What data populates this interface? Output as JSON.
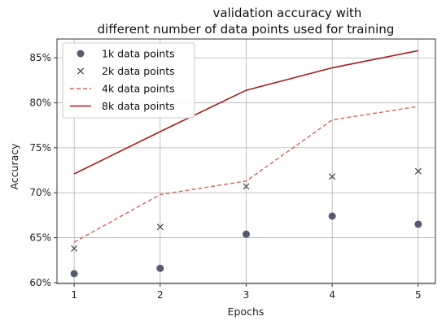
{
  "chart_data": {
    "type": "line",
    "title_lines": [
      "validation accuracy with",
      "different number of data points used for training"
    ],
    "xlabel": "Epochs",
    "ylabel": "Accuracy",
    "x": [
      1,
      2,
      3,
      4,
      5
    ],
    "xlim": [
      0.8,
      5.2
    ],
    "ylim": [
      0.599,
      0.871
    ],
    "yticks": [
      0.6,
      0.65,
      0.7,
      0.75,
      0.8,
      0.85
    ],
    "ytick_labels": [
      "60%",
      "65%",
      "70%",
      "75%",
      "80%",
      "85%"
    ],
    "xtick_labels": [
      "1",
      "2",
      "3",
      "4",
      "5"
    ],
    "grid": true,
    "legend_position": "top-left",
    "series": [
      {
        "name": "1k data points",
        "style": "marker-circle",
        "color": "#555a6e",
        "values": [
          0.61,
          0.616,
          0.654,
          0.674,
          0.665
        ]
      },
      {
        "name": "2k data points",
        "style": "marker-x",
        "color": "#444444",
        "values": [
          0.638,
          0.662,
          0.707,
          0.718,
          0.724
        ]
      },
      {
        "name": "4k data points",
        "style": "dashed-line",
        "color": "#d9605a",
        "values": [
          0.645,
          0.698,
          0.713,
          0.781,
          0.796
        ]
      },
      {
        "name": "8k data points",
        "style": "solid-line",
        "color": "#a51d1d",
        "values": [
          0.721,
          0.768,
          0.814,
          0.839,
          0.858
        ]
      }
    ]
  }
}
